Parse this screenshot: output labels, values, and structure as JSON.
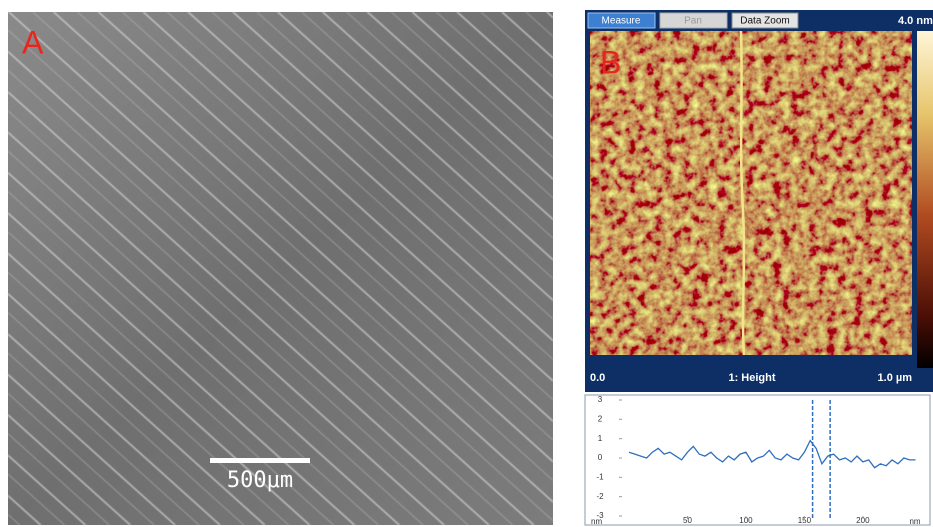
{
  "panel_a": {
    "label": "A",
    "scale_bar": "500μm"
  },
  "panel_b": {
    "label": "B",
    "toolbar": {
      "buttons": [
        "Measure",
        "Pan",
        "Data Zoom"
      ],
      "color_max": "4.0 nm"
    },
    "footer": {
      "left": "0.0",
      "center": "1: Height",
      "right": "1.0 µm"
    },
    "profile": {
      "x": [
        0,
        5,
        10,
        15,
        20,
        25,
        30,
        35,
        40,
        45,
        50,
        55,
        60,
        65,
        70,
        75,
        80,
        85,
        90,
        95,
        100,
        105,
        110,
        115,
        120,
        125,
        130,
        135,
        140,
        145,
        150,
        155,
        160,
        165,
        170,
        175,
        180,
        185,
        190,
        195,
        200,
        205,
        210,
        215,
        220,
        225,
        230,
        235,
        240,
        245
      ],
      "values": [
        0.3,
        0.2,
        0.1,
        0.0,
        0.3,
        0.5,
        0.2,
        0.3,
        0.1,
        -0.1,
        0.3,
        0.6,
        0.2,
        0.1,
        0.3,
        0.0,
        -0.2,
        0.1,
        -0.1,
        0.2,
        0.3,
        -0.2,
        0.0,
        0.1,
        0.4,
        0.0,
        -0.1,
        0.2,
        0.0,
        -0.1,
        0.3,
        0.9,
        0.5,
        -0.3,
        0.1,
        0.2,
        -0.1,
        0.0,
        -0.2,
        0.1,
        -0.2,
        -0.1,
        -0.5,
        -0.3,
        -0.4,
        -0.1,
        -0.3,
        0.0,
        -0.1,
        -0.1
      ],
      "xlim": [
        -6,
        254
      ],
      "ylim": [
        -3,
        3
      ],
      "xticks": [
        50,
        100,
        150,
        200
      ],
      "yticks": [
        3,
        2,
        1,
        0,
        -1,
        -2,
        -3
      ],
      "x_unit": "nm",
      "y_unit": "nm",
      "cursors": [
        157,
        172
      ],
      "color": "#2f6fbf"
    }
  }
}
